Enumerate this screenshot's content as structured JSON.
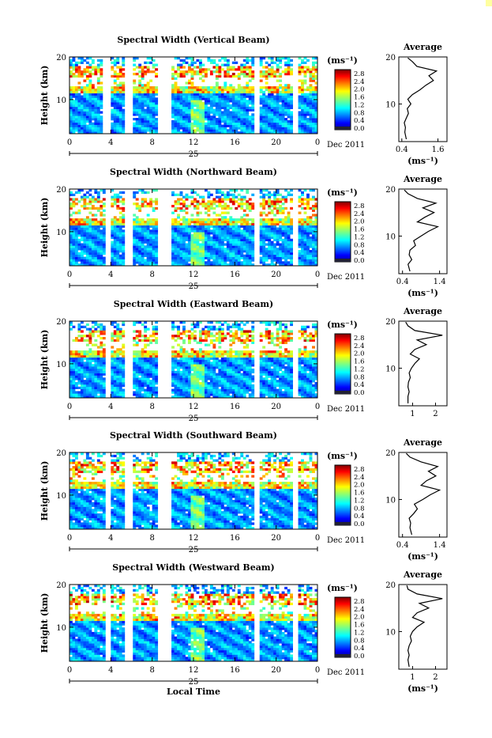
{
  "chart_data": [
    {
      "type": "heatmap",
      "title": "Spectral Width (Vertical Beam)",
      "ylabel": "Height (km)",
      "x_ticks": [
        "0",
        "4",
        "8",
        "12",
        "16",
        "20",
        "0"
      ],
      "y_ticks": [
        "20",
        "10"
      ],
      "xlim": [
        0,
        24
      ],
      "ylim": [
        2,
        20
      ],
      "date_day": "25",
      "date_label": "Dec 2011",
      "colorbar": {
        "unit": "(ms⁻¹)",
        "ticks": [
          "2.8",
          "2.4",
          "2.0",
          "1.6",
          "1.2",
          "0.8",
          "0.4",
          "0.0"
        ]
      },
      "gaps": [
        [
          3.3,
          3.9
        ],
        [
          5.4,
          6.0
        ],
        [
          8.5,
          9.8
        ],
        [
          17.9,
          18.4
        ],
        [
          21.6,
          22.1
        ]
      ],
      "average": {
        "title": "Average",
        "x_ticks": [
          "0.4",
          "1.6"
        ],
        "xlim": [
          0.3,
          1.9
        ],
        "xlabel": "(ms⁻¹)",
        "y": [
          2.5,
          4,
          5,
          6,
          7,
          8,
          9,
          10,
          11,
          12,
          13,
          14,
          15,
          16,
          17,
          18,
          19,
          19.8
        ],
        "x": [
          0.55,
          0.5,
          0.52,
          0.48,
          0.55,
          0.62,
          0.58,
          0.7,
          0.6,
          0.75,
          1.0,
          1.2,
          1.45,
          1.3,
          1.55,
          0.9,
          0.75,
          0.6
        ]
      }
    },
    {
      "type": "heatmap",
      "title": "Spectral Width (Northward Beam)",
      "ylabel": "Height (km)",
      "x_ticks": [
        "0",
        "4",
        "8",
        "12",
        "16",
        "20",
        "0"
      ],
      "y_ticks": [
        "20",
        "10"
      ],
      "xlim": [
        0,
        24
      ],
      "ylim": [
        2,
        20
      ],
      "date_day": "25",
      "date_label": "Dec 2011",
      "colorbar": {
        "unit": "(ms⁻¹)",
        "ticks": [
          "2.8",
          "2.4",
          "2.0",
          "1.6",
          "1.2",
          "0.8",
          "0.4",
          "0.0"
        ]
      },
      "gaps": [
        [
          3.4,
          3.9
        ],
        [
          5.4,
          6.0
        ],
        [
          8.5,
          9.8
        ],
        [
          17.9,
          18.4
        ],
        [
          21.6,
          22.1
        ]
      ],
      "average": {
        "title": "Average",
        "x_ticks": [
          "0.4",
          "1.4"
        ],
        "xlim": [
          0.3,
          1.6
        ],
        "xlabel": "(ms⁻¹)",
        "y": [
          2.5,
          4,
          5,
          6,
          7,
          8,
          9,
          10,
          11,
          12,
          13,
          14,
          15,
          16,
          17,
          18,
          19,
          19.8
        ],
        "x": [
          0.6,
          0.55,
          0.65,
          0.58,
          0.6,
          0.75,
          0.7,
          0.9,
          1.1,
          1.35,
          0.8,
          1.0,
          1.25,
          0.95,
          1.3,
          0.8,
          0.55,
          0.45
        ]
      }
    },
    {
      "type": "heatmap",
      "title": "Spectral Width (Eastward Beam)",
      "ylabel": "Height (km)",
      "x_ticks": [
        "0",
        "4",
        "8",
        "12",
        "16",
        "20",
        "0"
      ],
      "y_ticks": [
        "20",
        "10"
      ],
      "xlim": [
        0,
        24
      ],
      "ylim": [
        2,
        20
      ],
      "date_day": "25",
      "date_label": "Dec 2011",
      "colorbar": {
        "unit": "(ms⁻¹)",
        "ticks": [
          "2.8",
          "2.4",
          "2.0",
          "1.6",
          "1.2",
          "0.8",
          "0.4",
          "0.0"
        ]
      },
      "gaps": [
        [
          3.4,
          3.9
        ],
        [
          5.4,
          6.0
        ],
        [
          8.5,
          9.8
        ],
        [
          17.9,
          18.4
        ],
        [
          21.6,
          22.1
        ]
      ],
      "average": {
        "title": "Average",
        "x_ticks": [
          "1",
          "2"
        ],
        "xlim": [
          0.4,
          2.5
        ],
        "xlabel": "",
        "y": [
          2.5,
          4,
          5,
          6,
          7,
          8,
          9,
          10,
          11,
          12,
          13,
          14,
          15,
          16,
          17,
          18,
          19,
          19.8
        ],
        "x": [
          0.8,
          0.8,
          0.85,
          0.8,
          0.82,
          0.9,
          0.85,
          0.95,
          1.1,
          1.3,
          0.9,
          1.1,
          1.6,
          1.2,
          2.3,
          1.1,
          0.8,
          0.7
        ]
      }
    },
    {
      "type": "heatmap",
      "title": "Spectral Width (Southward Beam)",
      "ylabel": "Height (km)",
      "x_ticks": [
        "0",
        "4",
        "8",
        "12",
        "16",
        "20",
        "0"
      ],
      "y_ticks": [
        "20",
        "10"
      ],
      "xlim": [
        0,
        24
      ],
      "ylim": [
        2,
        20
      ],
      "date_day": "25",
      "date_label": "Dec 2011",
      "colorbar": {
        "unit": "(ms⁻¹)",
        "ticks": [
          "2.8",
          "2.4",
          "2.0",
          "1.6",
          "1.2",
          "0.8",
          "0.4",
          "0.0"
        ]
      },
      "gaps": [
        [
          3.4,
          3.9
        ],
        [
          5.4,
          6.0
        ],
        [
          8.5,
          9.8
        ],
        [
          17.9,
          18.4
        ],
        [
          21.6,
          22.1
        ]
      ],
      "average": {
        "title": "Average",
        "x_ticks": [
          "0.4",
          "1.4"
        ],
        "xlim": [
          0.3,
          1.6
        ],
        "xlabel": "(ms⁻¹)",
        "y": [
          2.5,
          4,
          5,
          6,
          7,
          8,
          9,
          10,
          11,
          12,
          13,
          14,
          15,
          16,
          17,
          18,
          19,
          19.8
        ],
        "x": [
          0.65,
          0.6,
          0.62,
          0.58,
          0.7,
          0.8,
          0.72,
          0.95,
          1.15,
          1.4,
          0.9,
          1.05,
          1.3,
          1.1,
          1.35,
          0.9,
          0.6,
          0.5
        ]
      }
    },
    {
      "type": "heatmap",
      "title": "Spectral Width (Westward Beam)",
      "ylabel": "Height (km)",
      "xlabel": "Local Time",
      "x_ticks": [
        "0",
        "4",
        "8",
        "12",
        "16",
        "20",
        "0"
      ],
      "y_ticks": [
        "20",
        "10"
      ],
      "xlim": [
        0,
        24
      ],
      "ylim": [
        2,
        20
      ],
      "date_day": "25",
      "date_label": "Dec 2011",
      "colorbar": {
        "unit": "(ms⁻¹)",
        "ticks": [
          "2.8",
          "2.4",
          "2.0",
          "1.6",
          "1.2",
          "0.8",
          "0.4",
          "0.0"
        ]
      },
      "gaps": [
        [
          3.4,
          3.9
        ],
        [
          5.4,
          6.0
        ],
        [
          8.5,
          9.8
        ],
        [
          17.9,
          18.4
        ],
        [
          21.6,
          22.1
        ]
      ],
      "average": {
        "title": "Average",
        "x_ticks": [
          "1",
          "2"
        ],
        "xlim": [
          0.4,
          2.5
        ],
        "xlabel": "(ms⁻¹)",
        "y": [
          2.5,
          4,
          5,
          6,
          7,
          8,
          9,
          10,
          11,
          12,
          13,
          14,
          15,
          16,
          17,
          18,
          19,
          19.8
        ],
        "x": [
          0.85,
          0.8,
          0.85,
          0.8,
          0.85,
          0.95,
          0.9,
          1.0,
          1.2,
          1.5,
          1.0,
          1.2,
          1.7,
          1.3,
          2.3,
          1.2,
          0.8,
          0.75
        ]
      }
    }
  ]
}
